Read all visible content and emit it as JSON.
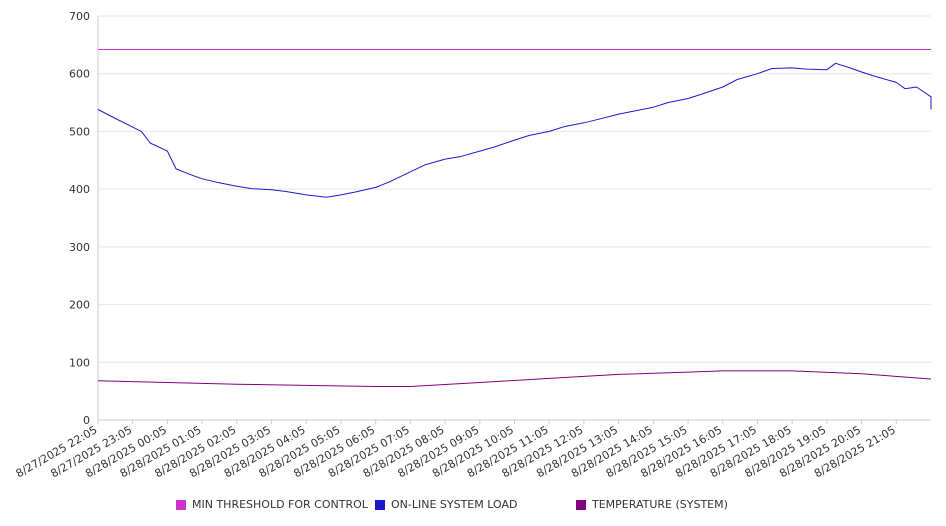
{
  "chart_data": {
    "type": "line",
    "ylim": [
      0,
      700
    ],
    "yticks": [
      0,
      100,
      200,
      300,
      400,
      500,
      600,
      700
    ],
    "grid": true,
    "legend_position": "bottom",
    "x_tick_labels": [
      "8/27/2025 22:05",
      "8/27/2025 23:05",
      "8/28/2025 00:05",
      "8/28/2025 01:05",
      "8/28/2025 02:05",
      "8/28/2025 03:05",
      "8/28/2025 04:05",
      "8/28/2025 05:05",
      "8/28/2025 06:05",
      "8/28/2025 07:05",
      "8/28/2025 08:05",
      "8/28/2025 09:05",
      "8/28/2025 10:05",
      "8/28/2025 11:05",
      "8/28/2025 12:05",
      "8/28/2025 13:05",
      "8/28/2025 14:05",
      "8/28/2025 15:05",
      "8/28/2025 16:05",
      "8/28/2025 17:05",
      "8/28/2025 18:05",
      "8/28/2025 19:05",
      "8/28/2025 20:05",
      "8/28/2025 21:05"
    ],
    "x_start": "8/27/2025 22:05",
    "x_end": "8/28/2025 22:05",
    "series": [
      {
        "name": "MIN THRESHOLD FOR CONTROL",
        "color": "#cc33cc",
        "points": [
          [
            "8/27/2025 22:05",
            642
          ],
          [
            "8/28/2025 22:05",
            642
          ]
        ]
      },
      {
        "name": "ON-LINE SYSTEM LOAD",
        "color": "#1a1acc",
        "points": [
          [
            "8/27/2025 22:05",
            538
          ],
          [
            "8/27/2025 22:30",
            525
          ],
          [
            "8/27/2025 23:00",
            510
          ],
          [
            "8/27/2025 23:20",
            500
          ],
          [
            "8/27/2025 23:35",
            480
          ],
          [
            "8/28/2025 00:05",
            466
          ],
          [
            "8/28/2025 00:20",
            435
          ],
          [
            "8/28/2025 00:45",
            425
          ],
          [
            "8/28/2025 01:05",
            418
          ],
          [
            "8/28/2025 01:30",
            412
          ],
          [
            "8/28/2025 02:05",
            405
          ],
          [
            "8/28/2025 02:30",
            401
          ],
          [
            "8/28/2025 03:05",
            399
          ],
          [
            "8/28/2025 03:30",
            396
          ],
          [
            "8/28/2025 04:05",
            390
          ],
          [
            "8/28/2025 04:40",
            386
          ],
          [
            "8/28/2025 05:05",
            390
          ],
          [
            "8/28/2025 05:30",
            395
          ],
          [
            "8/28/2025 06:05",
            403
          ],
          [
            "8/28/2025 06:30",
            413
          ],
          [
            "8/28/2025 07:05",
            430
          ],
          [
            "8/28/2025 07:30",
            442
          ],
          [
            "8/28/2025 08:05",
            452
          ],
          [
            "8/28/2025 08:30",
            456
          ],
          [
            "8/28/2025 09:05",
            466
          ],
          [
            "8/28/2025 09:30",
            473
          ],
          [
            "8/28/2025 10:05",
            485
          ],
          [
            "8/28/2025 10:30",
            493
          ],
          [
            "8/28/2025 11:05",
            500
          ],
          [
            "8/28/2025 11:30",
            508
          ],
          [
            "8/28/2025 12:05",
            515
          ],
          [
            "8/28/2025 12:30",
            521
          ],
          [
            "8/28/2025 13:05",
            530
          ],
          [
            "8/28/2025 13:30",
            535
          ],
          [
            "8/28/2025 14:05",
            542
          ],
          [
            "8/28/2025 14:30",
            550
          ],
          [
            "8/28/2025 15:05",
            557
          ],
          [
            "8/28/2025 15:30",
            565
          ],
          [
            "8/28/2025 16:05",
            577
          ],
          [
            "8/28/2025 16:30",
            590
          ],
          [
            "8/28/2025 17:05",
            600
          ],
          [
            "8/28/2025 17:30",
            609
          ],
          [
            "8/28/2025 18:05",
            610
          ],
          [
            "8/28/2025 18:30",
            608
          ],
          [
            "8/28/2025 19:05",
            607
          ],
          [
            "8/28/2025 19:20",
            618
          ],
          [
            "8/28/2025 19:45",
            610
          ],
          [
            "8/28/2025 20:05",
            603
          ],
          [
            "8/28/2025 20:30",
            595
          ],
          [
            "8/28/2025 21:05",
            585
          ],
          [
            "8/28/2025 21:20",
            574
          ],
          [
            "8/28/2025 21:40",
            577
          ],
          [
            "8/28/2025 22:05",
            560
          ],
          [
            "8/28/2025 22:05",
            538
          ]
        ]
      },
      {
        "name": "TEMPERATURE (SYSTEM)",
        "color": "#800080",
        "points": [
          [
            "8/27/2025 22:05",
            68
          ],
          [
            "8/28/2025 00:05",
            65
          ],
          [
            "8/28/2025 02:05",
            62
          ],
          [
            "8/28/2025 04:05",
            60
          ],
          [
            "8/28/2025 06:05",
            58
          ],
          [
            "8/28/2025 07:05",
            58
          ],
          [
            "8/28/2025 09:05",
            65
          ],
          [
            "8/28/2025 11:05",
            72
          ],
          [
            "8/28/2025 13:05",
            79
          ],
          [
            "8/28/2025 15:05",
            83
          ],
          [
            "8/28/2025 16:05",
            85
          ],
          [
            "8/28/2025 18:05",
            85
          ],
          [
            "8/28/2025 20:05",
            80
          ],
          [
            "8/28/2025 22:05",
            71
          ]
        ]
      }
    ]
  }
}
